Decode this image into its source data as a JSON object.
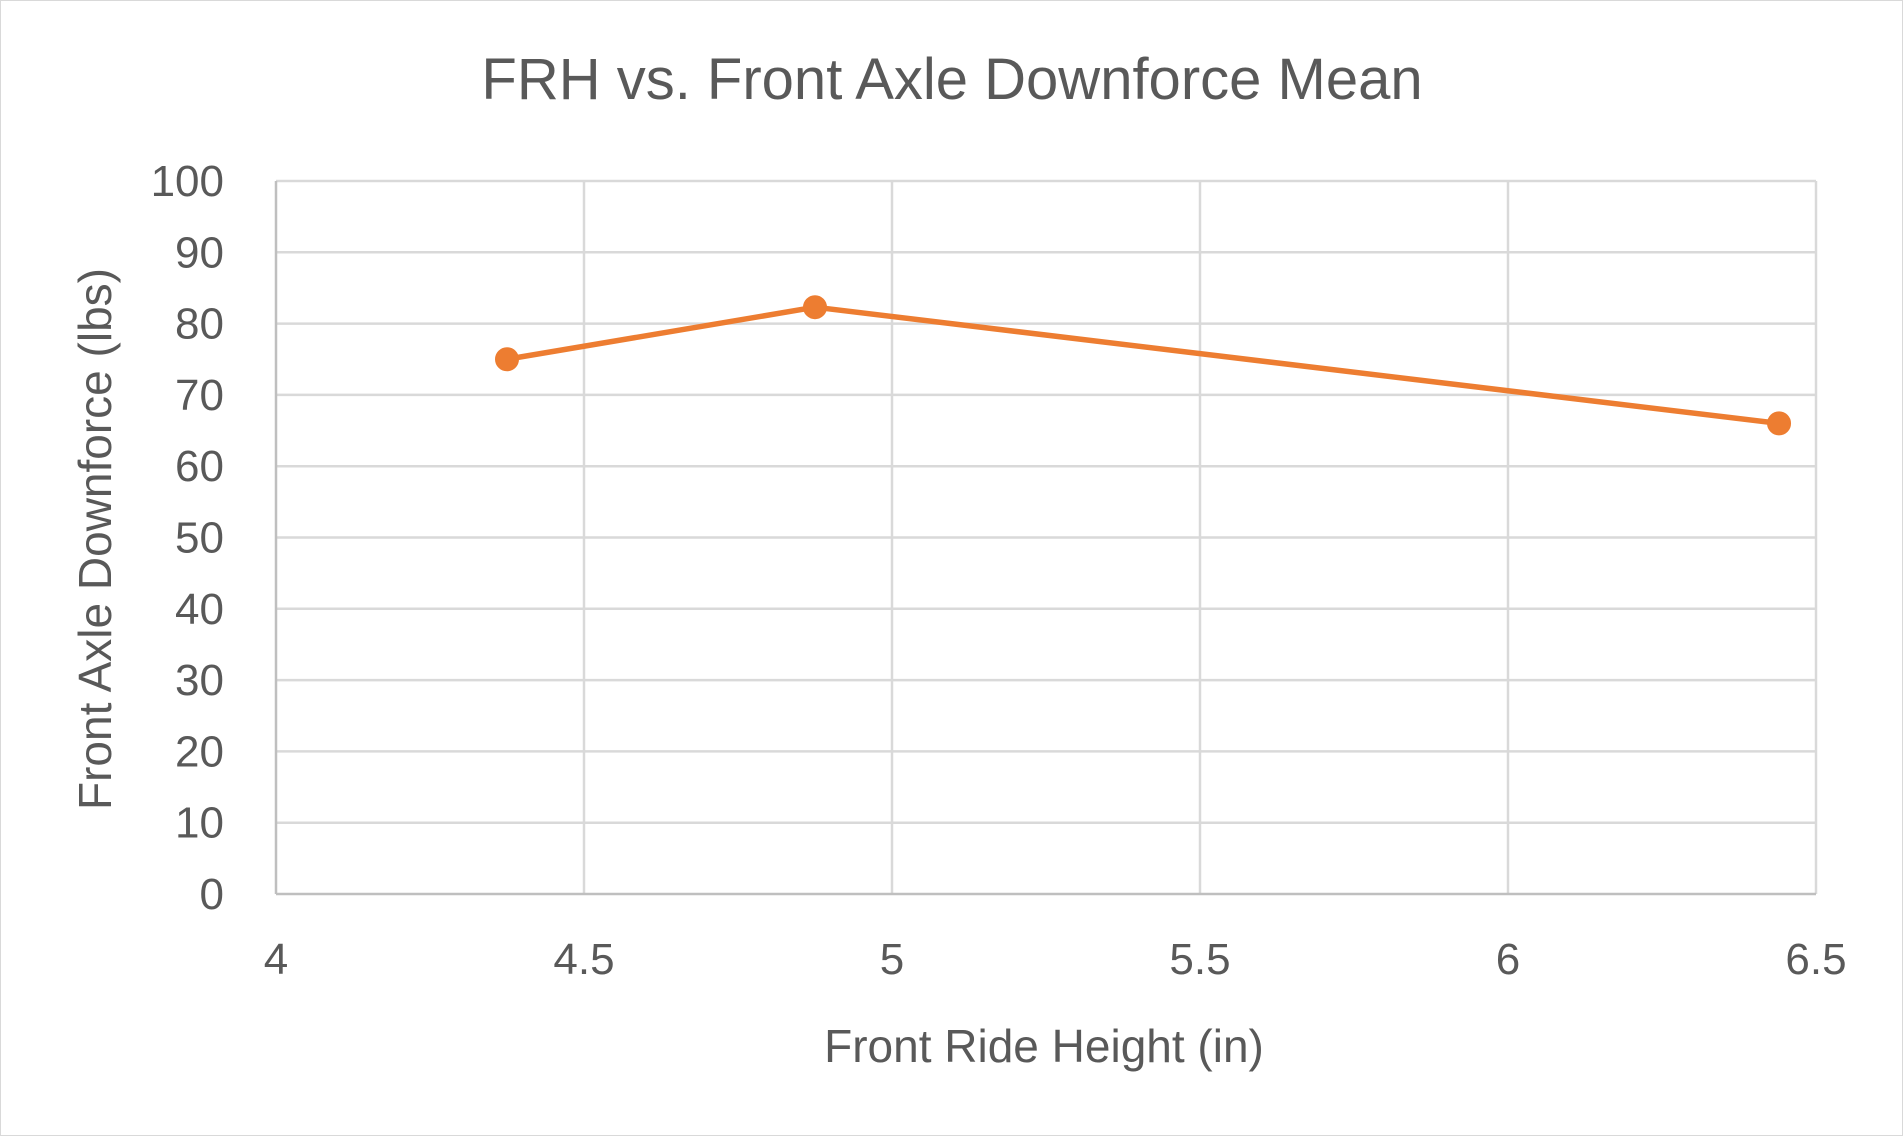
{
  "chart_data": {
    "type": "scatter",
    "title": "FRH vs. Front Axle Downforce Mean",
    "xlabel": "Front Ride Height (in)",
    "ylabel": "Front Axle Downforce (lbs)",
    "xlim": [
      4,
      6.5
    ],
    "ylim": [
      0,
      100
    ],
    "x_ticks": [
      "4",
      "4.5",
      "5",
      "5.5",
      "6",
      "6.5"
    ],
    "y_ticks": [
      "0",
      "10",
      "20",
      "30",
      "40",
      "50",
      "60",
      "70",
      "80",
      "90",
      "100"
    ],
    "grid": true,
    "series": [
      {
        "color": "#ed7d31",
        "line": true,
        "markers": true,
        "points": [
          {
            "x": 4.375,
            "y": 75
          },
          {
            "x": 4.875,
            "y": 82.3
          },
          {
            "x": 6.44,
            "y": 66
          }
        ]
      }
    ]
  }
}
